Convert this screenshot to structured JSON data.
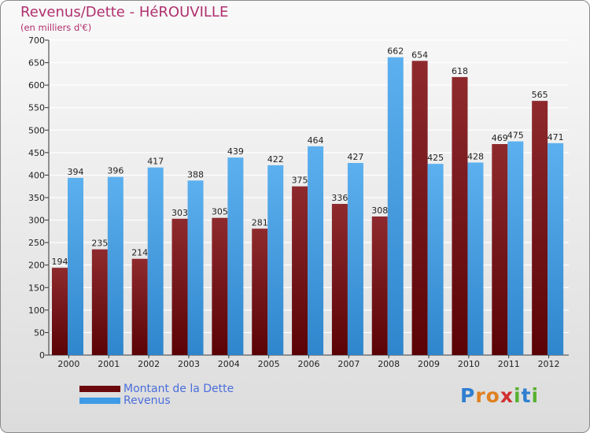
{
  "title": "Revenus/Dette - HéROUVILLE",
  "subtitle": "(en milliers d'€)",
  "colors": {
    "dette": "#7a1418",
    "revenus": "#4aa3ea",
    "title": "#b0306e",
    "legend_text": "#4a6edb"
  },
  "legend": {
    "items": [
      {
        "label": "Montant de la Dette",
        "color": "#6b0a0e"
      },
      {
        "label": "Revenus",
        "color": "#3f9be6"
      }
    ]
  },
  "brand": {
    "letters": [
      "P",
      "r",
      "o",
      "x",
      "i",
      "t",
      "i"
    ],
    "colors": [
      "#2f7fd0",
      "#e08020",
      "#e08020",
      "#d03030",
      "#58b030",
      "#2f7fd0",
      "#58b030"
    ]
  },
  "chart_data": {
    "type": "bar",
    "categories": [
      "2000",
      "2001",
      "2002",
      "2003",
      "2004",
      "2005",
      "2006",
      "2007",
      "2008",
      "2009",
      "2010",
      "2011",
      "2012"
    ],
    "series": [
      {
        "name": "Montant de la Dette",
        "values": [
          194,
          235,
          214,
          303,
          305,
          281,
          375,
          336,
          308,
          654,
          618,
          469,
          565
        ]
      },
      {
        "name": "Revenus",
        "values": [
          394,
          396,
          417,
          388,
          439,
          422,
          464,
          427,
          662,
          425,
          428,
          475,
          471
        ]
      }
    ],
    "title": "Revenus/Dette - HéROUVILLE",
    "ylabel": "(en milliers d'€)",
    "xlabel": "",
    "ylim": [
      0,
      700
    ],
    "ytick_step": 50,
    "yticks": [
      "0",
      "50",
      "100",
      "150",
      "200",
      "250",
      "300",
      "350",
      "400",
      "450",
      "500",
      "550",
      "600",
      "650",
      "700"
    ],
    "grid": true,
    "legend_position": "bottom-left"
  }
}
